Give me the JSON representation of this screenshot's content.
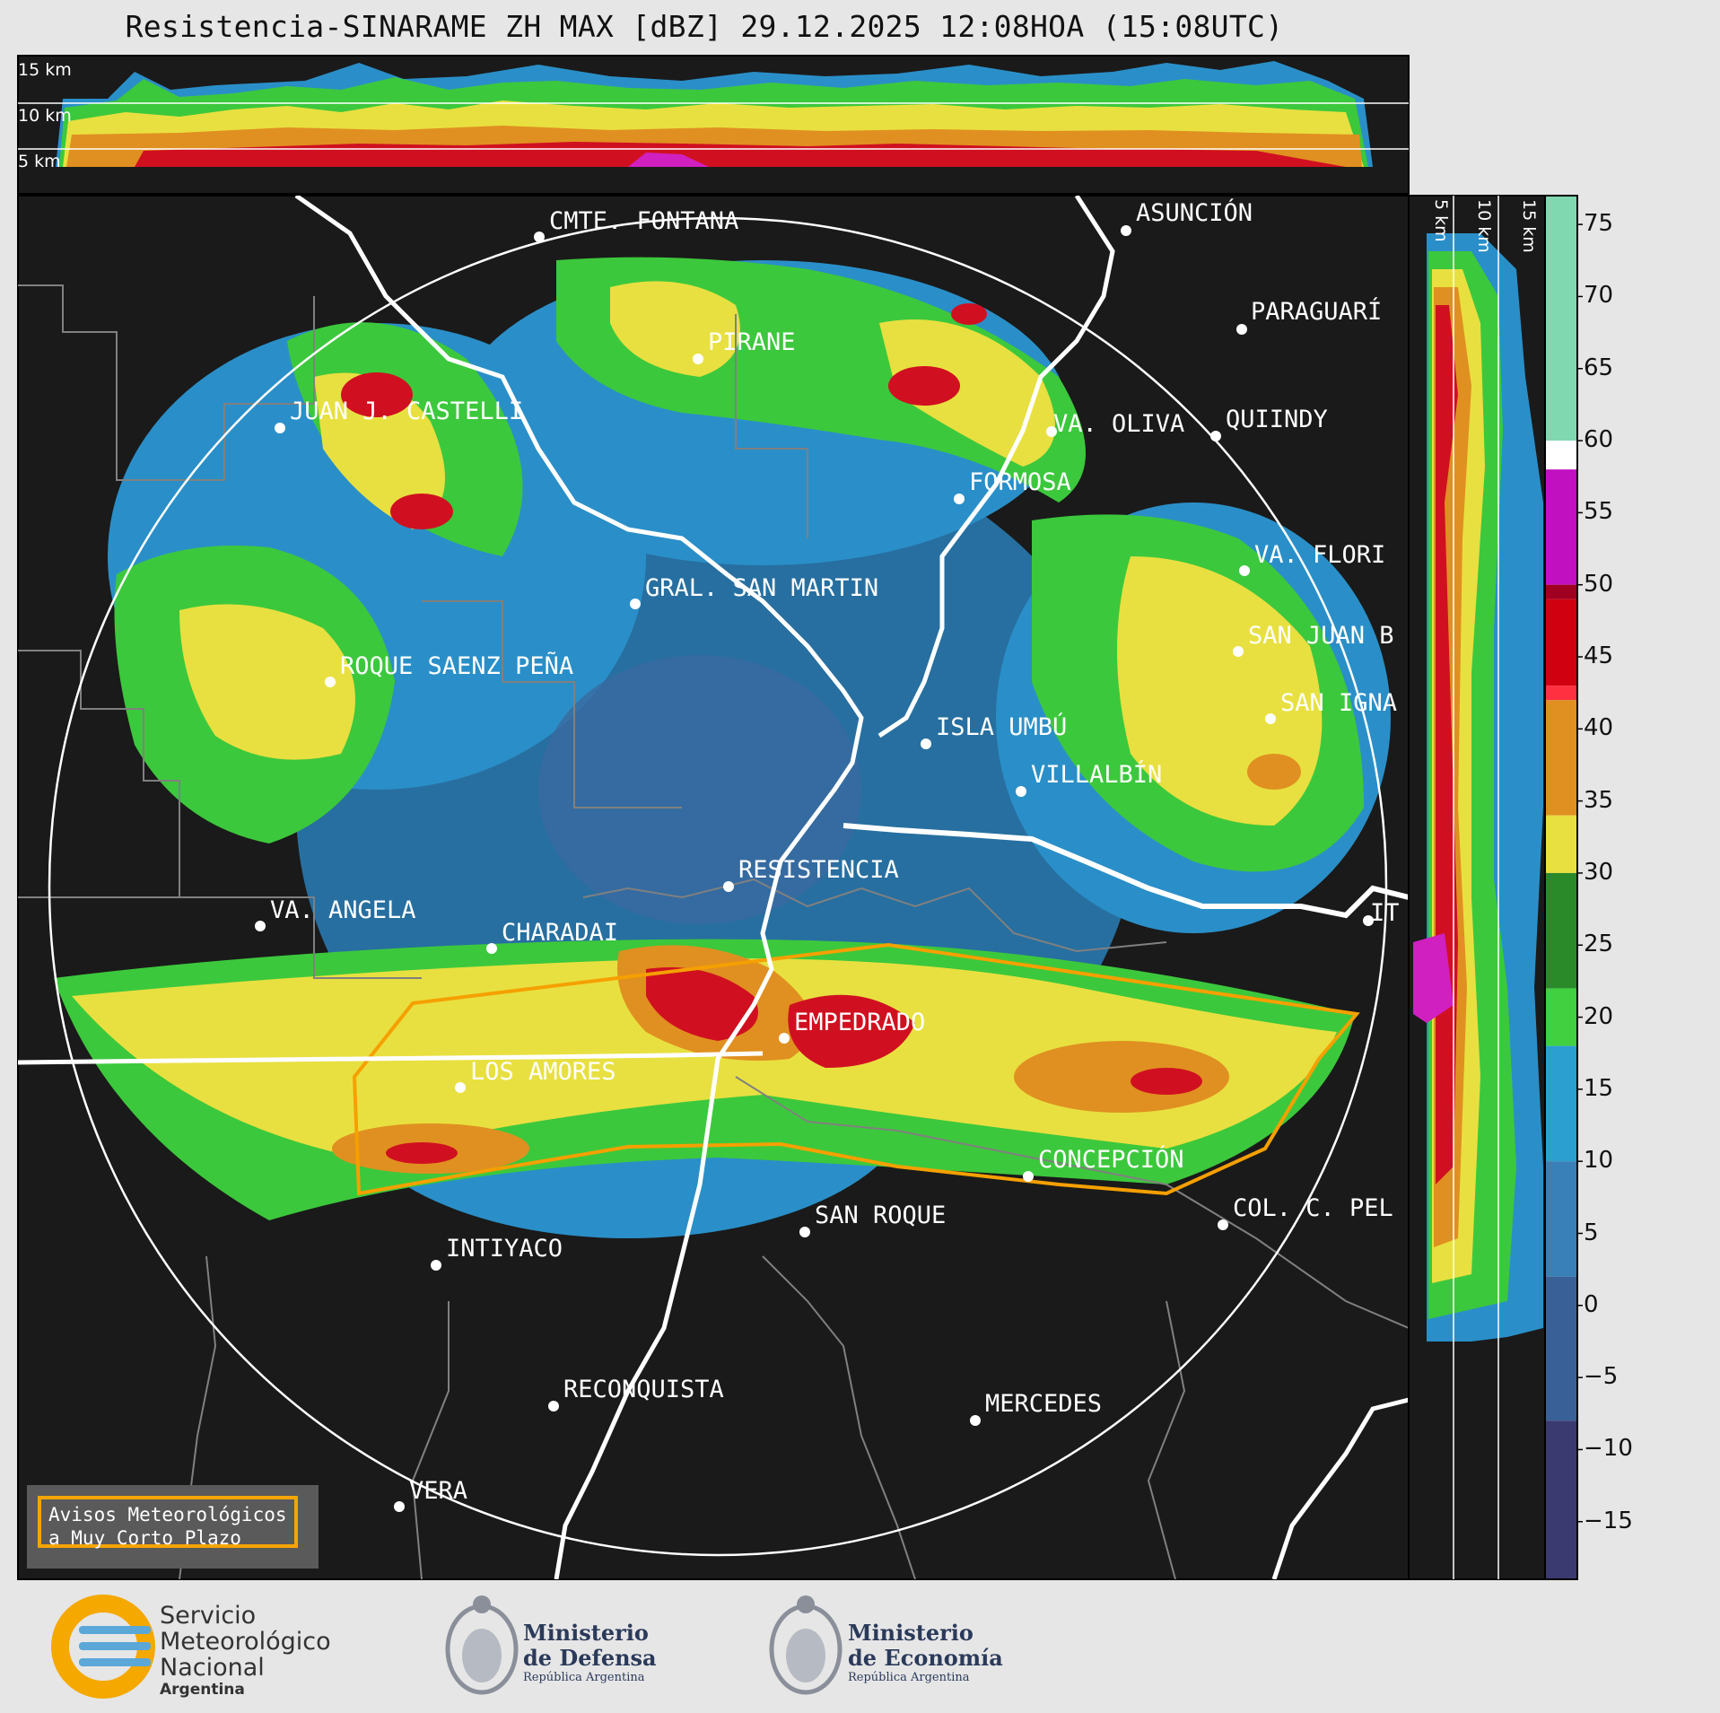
{
  "title": "Resistencia-SINARAME ZH MAX [dBZ] 29.12.2025 12:08HOA (15:08UTC)",
  "top_panel_labels": [
    "15 km",
    "10 km",
    "5 km"
  ],
  "side_panel_labels": [
    "5 km",
    "10 km",
    "15 km"
  ],
  "colorbar_ticks": [
    "75",
    "70",
    "65",
    "60",
    "55",
    "50",
    "45",
    "40",
    "35",
    "30",
    "25",
    "20",
    "15",
    "10",
    "5",
    "0",
    "−5",
    "−10",
    "−15"
  ],
  "cities": [
    {
      "name": "CMTE. FONTANA"
    },
    {
      "name": "ASUNCIÓN"
    },
    {
      "name": "PARAGUARÍ"
    },
    {
      "name": "PIRANE"
    },
    {
      "name": "JUAN J. CASTELLI"
    },
    {
      "name": "VA. OLIVA"
    },
    {
      "name": "QUIINDY"
    },
    {
      "name": "FORMOSA"
    },
    {
      "name": "VA. FLORI"
    },
    {
      "name": "GRAL. SAN MARTIN"
    },
    {
      "name": "SAN JUAN B"
    },
    {
      "name": "ROQUE SAENZ PEÑA"
    },
    {
      "name": "SAN IGNA"
    },
    {
      "name": "ISLA UMBÚ"
    },
    {
      "name": "VILLALBÍN"
    },
    {
      "name": "RESISTENCIA"
    },
    {
      "name": "VA. ANGELA"
    },
    {
      "name": "CHARADAI"
    },
    {
      "name": "IT"
    },
    {
      "name": "EMPEDRADO"
    },
    {
      "name": "LOS AMORES"
    },
    {
      "name": "CONCEPCIÓN"
    },
    {
      "name": "SAN ROQUE"
    },
    {
      "name": "COL. C. PEL"
    },
    {
      "name": "INTIYACO"
    },
    {
      "name": "RECONQUISTA"
    },
    {
      "name": "MERCEDES"
    },
    {
      "name": "VERA"
    }
  ],
  "warning_box": {
    "line1": "Avisos Meteorológicos",
    "line2": "a Muy Corto Plazo"
  },
  "logos": {
    "smn": {
      "line1": "Servicio",
      "line2": "Meteorológico",
      "line3": "Nacional",
      "line4": "Argentina"
    },
    "defensa": {
      "line1": "Ministerio",
      "line2": "de Defensa",
      "line3": "República Argentina"
    },
    "economia": {
      "line1": "Ministerio",
      "line2": "de Economía",
      "line3": "República Argentina"
    }
  },
  "colors": {
    "map_bg": "#1a1a1a",
    "warning_polygon": "#f5a000",
    "river": "#ffffff",
    "boundary": "#808080"
  }
}
